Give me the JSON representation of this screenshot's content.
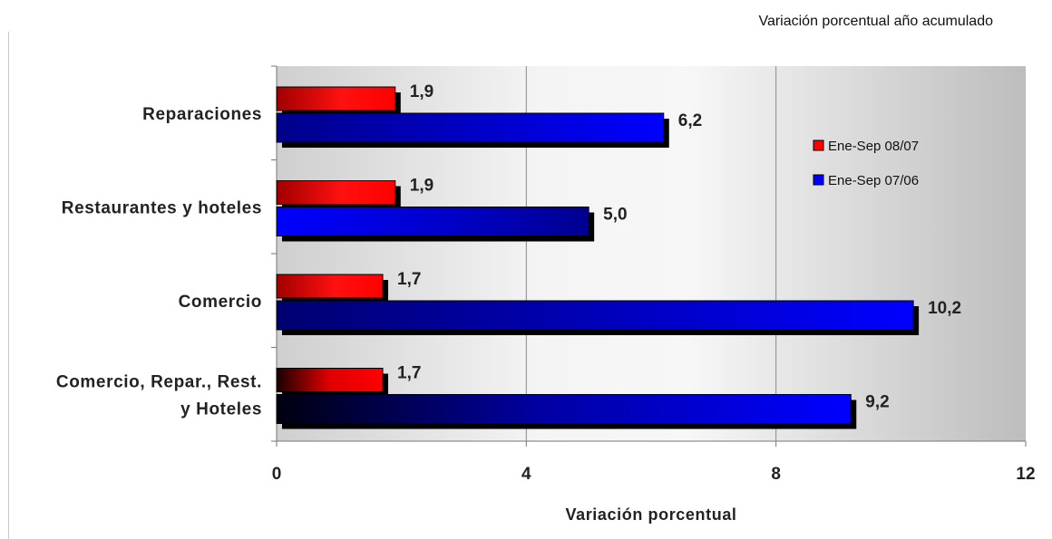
{
  "chart_data": {
    "type": "bar",
    "orientation": "horizontal",
    "subtitle": "Variación porcentual año acumulado",
    "xlabel": "Variación porcentual",
    "ylabel": "",
    "xlim": [
      0,
      12
    ],
    "x_ticks": [
      "0",
      "4",
      "8",
      "12"
    ],
    "grid": true,
    "legend_position": "right",
    "categories": [
      [
        "Reparaciones"
      ],
      [
        "Restaurantes y hoteles"
      ],
      [
        "Comercio"
      ],
      [
        "Comercio, Repar., Rest.",
        "y Hoteles"
      ]
    ],
    "series": [
      {
        "name": "Ene-Sep 08/07",
        "color": "#ff0000",
        "values": [
          1.9,
          1.9,
          1.7,
          1.7
        ],
        "labels": [
          "1,9",
          "1,9",
          "1,7",
          "1,7"
        ]
      },
      {
        "name": "Ene-Sep 07/06",
        "color": "#0000ff",
        "values": [
          6.2,
          5.0,
          10.2,
          9.2
        ],
        "labels": [
          "6,2",
          "5,0",
          "10,2",
          "9,2"
        ]
      }
    ]
  }
}
